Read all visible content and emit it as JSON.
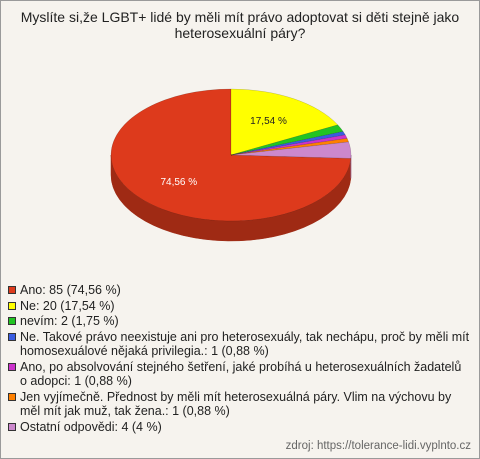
{
  "chart_data": {
    "type": "pie3d",
    "title": "Myslíte si,že LGBT+ lidé by měli mít právo adoptovat si děti stejně jako heterosexuální páry?",
    "categories": [
      "Ano: 85 (74,56 %)",
      "Ne: 20 (17,54 %)",
      "nevím: 2 (1,75 %)",
      "Ne. Takové právo neexistuje ani pro heterosexuály, tak nechápu, proč by měli mít homosexuálové nějaká privilegia.: 1 (0,88 %)",
      "Ano, po absolvování stejného šetření, jaké probíhá u heterosexuálních žadatelů o adopci: 1 (0,88 %)",
      "Jen vyjímečně. Přednost by měli mít heterosexuálná páry. Vlim na výchovu by měl mít jak muž, tak žena.: 1 (0,88 %)",
      "Ostatní odpovědi: 4 (4 %)"
    ],
    "values": [
      74.56,
      17.54,
      1.75,
      0.88,
      0.88,
      0.88,
      4
    ],
    "value_labels": [
      "74,56 %",
      "17,54 %",
      null,
      null,
      null,
      null,
      null
    ],
    "colors": [
      "#dd3a1c",
      "#ffff00",
      "#22c422",
      "#3a5ce0",
      "#cc33cc",
      "#ff8000",
      "#cc88cc"
    ],
    "source": "zdroj: https://tolerance-lidi.vyplnto.cz"
  }
}
